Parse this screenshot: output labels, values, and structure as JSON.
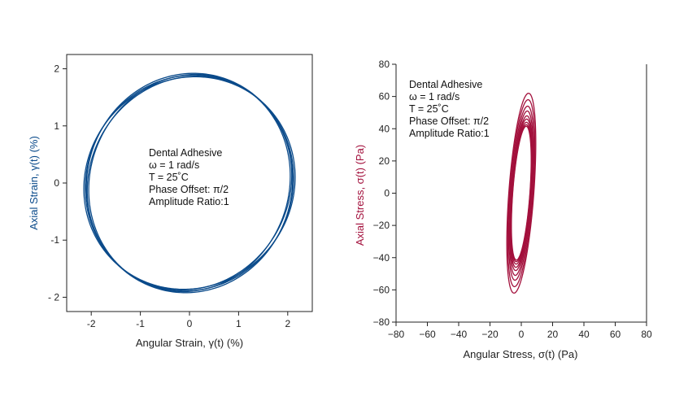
{
  "chart_data": [
    {
      "type": "line",
      "xlabel": "Angular Strain, γ(t) (%)",
      "ylabel": "Axial Strain, γ(t) (%)",
      "xlim": [
        -2.5,
        2.5
      ],
      "ylim": [
        -2.25,
        2.25
      ],
      "xticks": [
        -2,
        -1,
        0,
        1,
        2
      ],
      "yticks": [
        2,
        1,
        0,
        -1,
        -2
      ],
      "xtick_labels": [
        "-2",
        "-1",
        "0",
        "1",
        "2"
      ],
      "ytick_labels": [
        "2",
        "1",
        "0",
        "-1",
        "- 2"
      ],
      "annotation": [
        "Dental Adhesive",
        "ω = 1 rad/s",
        "T = 25˚C",
        "Phase Offset: π/2",
        "Amplitude Ratio:1"
      ],
      "color": "#0a4a8a",
      "grid": false,
      "series": [
        {
          "loops": [
            {
              "x_amp": 2.1,
              "y_amp": 1.92,
              "skew": 0.05
            },
            {
              "x_amp": 2.12,
              "y_amp": 1.89,
              "skew": 0.06
            },
            {
              "x_amp": 2.15,
              "y_amp": 1.86,
              "skew": 0.07
            },
            {
              "x_amp": 2.05,
              "y_amp": 1.9,
              "skew": 0.08
            },
            {
              "x_amp": 2.08,
              "y_amp": 1.87,
              "skew": 0.09
            }
          ]
        }
      ]
    },
    {
      "type": "line",
      "xlabel": "Angular Stress, σ(t) (Pa)",
      "ylabel": "Axial Stress, σ(t) (Pa)",
      "xlim": [
        -80,
        80
      ],
      "ylim": [
        -80,
        80
      ],
      "xticks": [
        -80,
        -60,
        -40,
        -20,
        0,
        20,
        40,
        60,
        80
      ],
      "yticks": [
        -80,
        -60,
        -40,
        -20,
        0,
        20,
        40,
        60,
        80
      ],
      "xtick_labels": [
        "−80",
        "−60",
        "−40",
        "−20",
        "0",
        "20",
        "40",
        "60",
        "80"
      ],
      "ytick_labels": [
        "−80",
        "−60",
        "−40",
        "−20",
        "0",
        "20",
        "40",
        "60",
        "80"
      ],
      "annotation": [
        "Dental Adhesive",
        "ω = 1 rad/s",
        "T = 25˚C",
        "Phase Offset: π/2",
        "Amplitude Ratio:1"
      ],
      "color": "#a3103c",
      "grid": false,
      "series": [
        {
          "loops": [
            {
              "x_amp": 8,
              "y_amp": 62,
              "x_offset": 0,
              "y_offset": 0
            },
            {
              "x_amp": 7.5,
              "y_amp": 58,
              "x_offset": 0,
              "y_offset": 0
            },
            {
              "x_amp": 7,
              "y_amp": 54,
              "x_offset": 0,
              "y_offset": 0
            },
            {
              "x_amp": 6.5,
              "y_amp": 51,
              "x_offset": 0,
              "y_offset": 0
            },
            {
              "x_amp": 6.2,
              "y_amp": 48,
              "x_offset": 0,
              "y_offset": 0
            },
            {
              "x_amp": 6,
              "y_amp": 46,
              "x_offset": 0,
              "y_offset": 0
            },
            {
              "x_amp": 5.8,
              "y_amp": 44,
              "x_offset": 0,
              "y_offset": 0
            },
            {
              "x_amp": 5.6,
              "y_amp": 42.5,
              "x_offset": 0,
              "y_offset": 0
            },
            {
              "x_amp": 5.5,
              "y_amp": 41.5,
              "x_offset": 0,
              "y_offset": 0
            }
          ]
        }
      ]
    }
  ]
}
